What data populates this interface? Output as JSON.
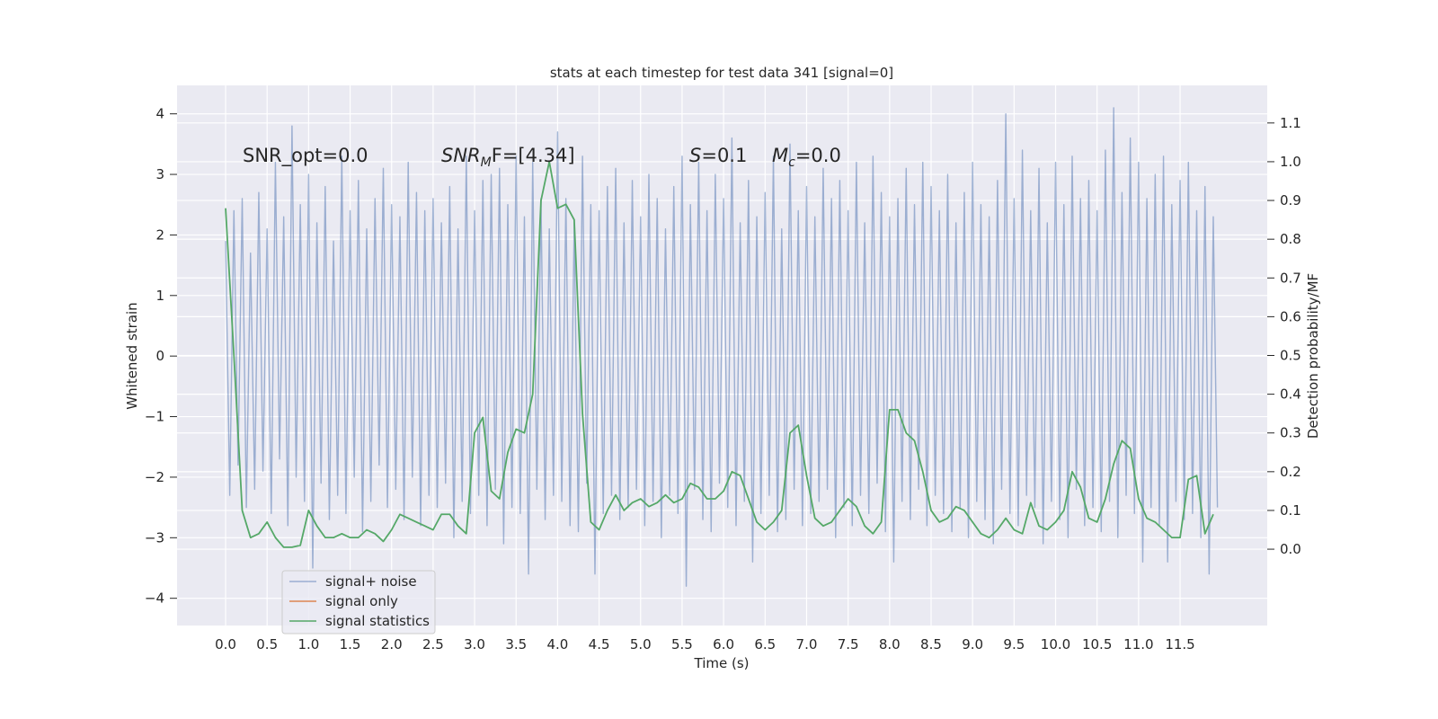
{
  "chart_data": {
    "type": "line",
    "title": "stats at each timestep for test data 341 [signal=0]",
    "xlabel": "Time (s)",
    "ylabel": "Whitened strain",
    "y2label": "Detection probability/MF",
    "xlim": [
      -0.585,
      12.55
    ],
    "ylim": [
      -4.45,
      4.47
    ],
    "y2lim": [
      -0.197,
      1.197
    ],
    "xticks": [
      {
        "value": 0,
        "label": "0.0"
      },
      0.5,
      {
        "value": 1,
        "label": "1.0"
      },
      1.5,
      {
        "value": 2,
        "label": "2.0"
      },
      2.5,
      {
        "value": 3,
        "label": "3.0"
      },
      3.5,
      {
        "value": 4,
        "label": "4.0"
      },
      4.5,
      {
        "value": 5,
        "label": "5.0"
      },
      5.5,
      {
        "value": 6,
        "label": "6.0"
      },
      6.5,
      {
        "value": 7,
        "label": "7.0"
      },
      7.5,
      {
        "value": 8,
        "label": "8.0"
      },
      8.5,
      {
        "value": 9,
        "label": "9.0"
      },
      9.5,
      {
        "value": 10,
        "label": "10.0"
      },
      10.5,
      {
        "value": 11,
        "label": "11.0"
      },
      11.5
    ],
    "yticks": [
      {
        "value": -4,
        "label": "−4"
      },
      {
        "value": -3,
        "label": "−3"
      },
      {
        "value": -2,
        "label": "−2"
      },
      {
        "value": -1,
        "label": "−1"
      },
      0,
      1,
      2,
      3,
      4
    ],
    "y2ticks": [
      {
        "value": 0,
        "label": "0.0"
      },
      0.1,
      0.2,
      0.3,
      0.4,
      0.5,
      0.6,
      0.7,
      0.8,
      0.9,
      {
        "value": 1,
        "label": "1.0"
      },
      1.1
    ],
    "grid": true,
    "legend": "lower left",
    "annotations": [
      {
        "main": "SNR_opt=0.0"
      },
      {
        "main": "SNR",
        "sub": "M",
        "tail": "F=[4.34]"
      },
      {
        "main": "S",
        "tail": "=0.1"
      },
      {
        "main": "M",
        "sub": "c",
        "tail": "=0.0"
      }
    ],
    "series": [
      {
        "name": "signal+ noise",
        "color": "#4c72b0",
        "opacity": 0.5,
        "x": [
          0,
          0.05,
          0.1,
          0.15,
          0.2,
          0.25,
          0.3,
          0.35,
          0.4,
          0.45,
          0.5,
          0.55,
          0.6,
          0.65,
          0.7,
          0.75,
          0.8,
          0.85,
          0.9,
          0.95,
          1,
          1.05,
          1.1,
          1.15,
          1.2,
          1.25,
          1.3,
          1.35,
          1.4,
          1.45,
          1.5,
          1.55,
          1.6,
          1.65,
          1.7,
          1.75,
          1.8,
          1.85,
          1.9,
          1.95,
          2,
          2.05,
          2.1,
          2.15,
          2.2,
          2.25,
          2.3,
          2.35,
          2.4,
          2.45,
          2.5,
          2.55,
          2.6,
          2.65,
          2.7,
          2.75,
          2.8,
          2.85,
          2.9,
          2.95,
          3,
          3.05,
          3.1,
          3.15,
          3.2,
          3.25,
          3.3,
          3.35,
          3.4,
          3.45,
          3.5,
          3.55,
          3.6,
          3.65,
          3.7,
          3.75,
          3.8,
          3.85,
          3.9,
          3.95,
          4,
          4.05,
          4.1,
          4.15,
          4.2,
          4.25,
          4.3,
          4.35,
          4.4,
          4.45,
          4.5,
          4.55,
          4.6,
          4.65,
          4.7,
          4.75,
          4.8,
          4.85,
          4.9,
          4.95,
          5,
          5.05,
          5.1,
          5.15,
          5.2,
          5.25,
          5.3,
          5.35,
          5.4,
          5.45,
          5.5,
          5.55,
          5.6,
          5.65,
          5.7,
          5.75,
          5.8,
          5.85,
          5.9,
          5.95,
          6,
          6.05,
          6.1,
          6.15,
          6.2,
          6.25,
          6.3,
          6.35,
          6.4,
          6.45,
          6.5,
          6.55,
          6.6,
          6.65,
          6.7,
          6.75,
          6.8,
          6.85,
          6.9,
          6.95,
          7,
          7.05,
          7.1,
          7.15,
          7.2,
          7.25,
          7.3,
          7.35,
          7.4,
          7.45,
          7.5,
          7.55,
          7.6,
          7.65,
          7.7,
          7.75,
          7.8,
          7.85,
          7.9,
          7.95,
          8,
          8.05,
          8.1,
          8.15,
          8.2,
          8.25,
          8.3,
          8.35,
          8.4,
          8.45,
          8.5,
          8.55,
          8.6,
          8.65,
          8.7,
          8.75,
          8.8,
          8.85,
          8.9,
          8.95,
          9,
          9.05,
          9.1,
          9.15,
          9.2,
          9.25,
          9.3,
          9.35,
          9.4,
          9.45,
          9.5,
          9.55,
          9.6,
          9.65,
          9.7,
          9.75,
          9.8,
          9.85,
          9.9,
          9.95,
          10,
          10.05,
          10.1,
          10.15,
          10.2,
          10.25,
          10.3,
          10.35,
          10.4,
          10.45,
          10.5,
          10.55,
          10.6,
          10.65,
          10.7,
          10.75,
          10.8,
          10.85,
          10.9,
          10.95,
          11,
          11.05,
          11.1,
          11.15,
          11.2,
          11.25,
          11.3,
          11.35,
          11.4,
          11.45,
          11.5,
          11.55,
          11.6,
          11.65,
          11.7,
          11.75,
          11.8,
          11.85,
          11.9,
          11.95
        ],
        "values": [
          1.9,
          -2.3,
          2.4,
          -1.8,
          2.6,
          -2.5,
          1.7,
          -2.2,
          2.7,
          -1.9,
          2.1,
          -2.6,
          3.2,
          -1.7,
          2.3,
          -2.8,
          3.8,
          -2.0,
          2.5,
          -2.4,
          3.0,
          -3.5,
          2.2,
          -2.1,
          2.8,
          -2.7,
          1.9,
          -2.3,
          3.3,
          -2.6,
          2.4,
          -2.0,
          2.9,
          -2.9,
          2.1,
          -2.4,
          2.6,
          -1.8,
          3.1,
          -2.5,
          2.5,
          -2.2,
          2.3,
          -2.7,
          3.2,
          -2.0,
          2.7,
          -2.8,
          2.4,
          -2.3,
          2.6,
          -2.5,
          2.2,
          -2.1,
          2.8,
          -3.0,
          2.1,
          -2.4,
          3.3,
          -2.6,
          2.4,
          -2.3,
          2.9,
          -2.8,
          3.0,
          -2.2,
          3.1,
          -3.1,
          2.5,
          -2.5,
          3.3,
          -2.6,
          2.3,
          -3.6,
          3.2,
          -2.2,
          2.6,
          -2.7,
          2.1,
          -2.3,
          3.7,
          -2.4,
          2.6,
          -2.8,
          2.2,
          -2.9,
          3.3,
          -2.1,
          2.5,
          -3.6,
          2.4,
          -2.6,
          2.8,
          -2.3,
          3.1,
          -2.7,
          2.2,
          -2.5,
          2.9,
          -2.2,
          2.3,
          -2.8,
          3.0,
          -2.4,
          2.6,
          -3.0,
          2.1,
          -2.3,
          2.8,
          -2.6,
          3.3,
          -3.8,
          2.5,
          -2.2,
          3.2,
          -2.7,
          2.4,
          -2.9,
          3.0,
          -2.1,
          2.6,
          -2.5,
          3.6,
          -2.8,
          2.2,
          -2.4,
          2.9,
          -3.4,
          2.3,
          -2.6,
          2.7,
          -2.3,
          3.3,
          -2.9,
          2.1,
          -2.7,
          3.5,
          -2.2,
          2.4,
          -2.8,
          2.8,
          -2.6,
          2.3,
          -2.4,
          3.1,
          -2.2,
          2.6,
          -3.0,
          2.9,
          -2.5,
          2.4,
          -2.8,
          3.2,
          -2.3,
          2.2,
          -2.6,
          3.3,
          -2.1,
          2.7,
          -2.9,
          2.3,
          -3.4,
          2.6,
          -2.4,
          3.1,
          -2.7,
          2.5,
          -2.2,
          3.2,
          -2.8,
          2.8,
          -2.3,
          2.4,
          -2.6,
          3.0,
          -2.9,
          2.2,
          -2.5,
          2.7,
          -3.0,
          3.2,
          -2.4,
          2.5,
          -2.7,
          2.3,
          -3.1,
          2.9,
          -2.2,
          4.0,
          -2.6,
          2.6,
          -2.8,
          3.4,
          -2.3,
          2.4,
          -2.5,
          3.1,
          -3.1,
          2.2,
          -2.4,
          3.2,
          -2.7,
          2.5,
          -3.0,
          3.3,
          -2.2,
          2.6,
          -2.8,
          2.9,
          -2.5,
          2.4,
          -2.9,
          3.4,
          -2.4,
          4.1,
          -3.0,
          2.7,
          -2.3,
          3.6,
          -2.6,
          3.2,
          -3.4,
          2.6,
          -2.5,
          3.0,
          -2.8,
          3.3,
          -3.4,
          2.5,
          -2.4,
          2.9,
          -2.7,
          3.2,
          -2.6,
          2.4,
          -3.0,
          2.8,
          -3.6,
          2.3,
          -2.5
        ]
      },
      {
        "name": "signal only",
        "color": "#dd8452"
      },
      {
        "name": "signal statistics",
        "color": "#55a868",
        "axis": "y2",
        "x": [
          0,
          0.1,
          0.2,
          0.3,
          0.4,
          0.5,
          0.6,
          0.7,
          0.8,
          0.9,
          1,
          1.1,
          1.2,
          1.3,
          1.4,
          1.5,
          1.6,
          1.7,
          1.8,
          1.9,
          2,
          2.1,
          2.2,
          2.3,
          2.4,
          2.5,
          2.6,
          2.7,
          2.8,
          2.9,
          3,
          3.1,
          3.2,
          3.3,
          3.4,
          3.5,
          3.6,
          3.7,
          3.8,
          3.9,
          4,
          4.1,
          4.2,
          4.3,
          4.4,
          4.5,
          4.6,
          4.7,
          4.8,
          4.9,
          5,
          5.1,
          5.2,
          5.3,
          5.4,
          5.5,
          5.6,
          5.7,
          5.8,
          5.9,
          6,
          6.1,
          6.2,
          6.3,
          6.4,
          6.5,
          6.6,
          6.7,
          6.8,
          6.9,
          7,
          7.1,
          7.2,
          7.3,
          7.4,
          7.5,
          7.6,
          7.7,
          7.8,
          7.9,
          8,
          8.1,
          8.2,
          8.3,
          8.4,
          8.5,
          8.6,
          8.7,
          8.8,
          8.9,
          9,
          9.1,
          9.2,
          9.3,
          9.4,
          9.5,
          9.6,
          9.7,
          9.8,
          9.9,
          10,
          10.1,
          10.2,
          10.3,
          10.4,
          10.5,
          10.6,
          10.7,
          10.8,
          10.9,
          11,
          11.1,
          11.2,
          11.3,
          11.4,
          11.5,
          11.6,
          11.7,
          11.8,
          11.9
        ],
        "values": [
          0.88,
          0.5,
          0.1,
          0.03,
          0.04,
          0.07,
          0.03,
          0.005,
          0.005,
          0.01,
          0.1,
          0.06,
          0.03,
          0.03,
          0.04,
          0.03,
          0.03,
          0.05,
          0.04,
          0.02,
          0.05,
          0.09,
          0.08,
          0.07,
          0.06,
          0.05,
          0.09,
          0.09,
          0.06,
          0.04,
          0.3,
          0.34,
          0.15,
          0.13,
          0.25,
          0.31,
          0.3,
          0.4,
          0.9,
          1.0,
          0.88,
          0.89,
          0.85,
          0.35,
          0.07,
          0.05,
          0.1,
          0.14,
          0.1,
          0.12,
          0.13,
          0.11,
          0.12,
          0.14,
          0.12,
          0.13,
          0.17,
          0.16,
          0.13,
          0.13,
          0.15,
          0.2,
          0.19,
          0.13,
          0.07,
          0.05,
          0.07,
          0.1,
          0.3,
          0.32,
          0.19,
          0.08,
          0.06,
          0.07,
          0.1,
          0.13,
          0.11,
          0.06,
          0.04,
          0.07,
          0.36,
          0.36,
          0.3,
          0.28,
          0.2,
          0.1,
          0.07,
          0.08,
          0.11,
          0.1,
          0.07,
          0.04,
          0.03,
          0.05,
          0.08,
          0.05,
          0.04,
          0.12,
          0.06,
          0.05,
          0.07,
          0.1,
          0.2,
          0.16,
          0.08,
          0.07,
          0.13,
          0.22,
          0.28,
          0.26,
          0.13,
          0.08,
          0.07,
          0.05,
          0.03,
          0.03,
          0.18,
          0.19,
          0.04,
          0.09
        ]
      }
    ]
  }
}
